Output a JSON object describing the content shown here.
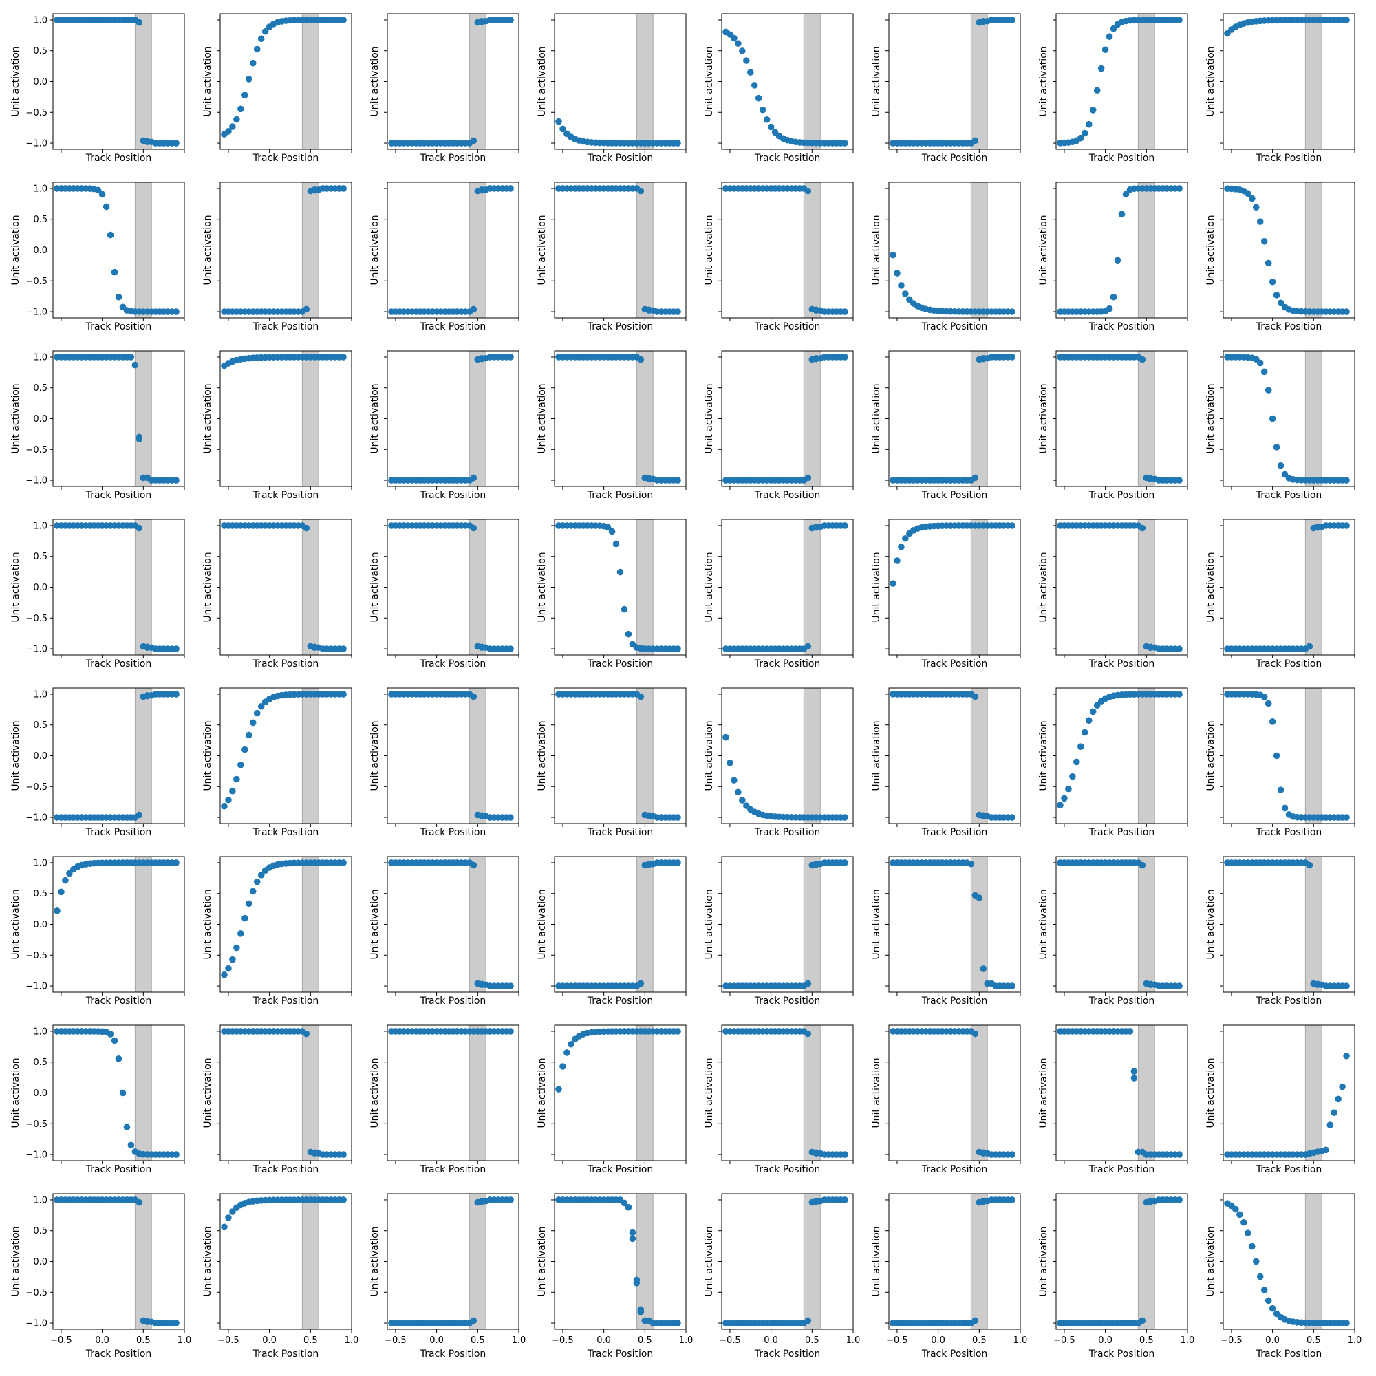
{
  "figure": {
    "background": "#ffffff"
  },
  "chart_data": {
    "type": "scatter",
    "grid": {
      "rows": 8,
      "cols": 8
    },
    "axis": {
      "xlabel": "Track Position",
      "ylabel": "Unit activation",
      "xlim": [
        -0.6,
        1.0
      ],
      "ylim": [
        -1.1,
        1.1
      ],
      "xticks": [
        -0.5,
        0.0,
        0.5,
        1.0
      ],
      "xtick_labels": [
        "−0.5",
        "0.0",
        "0.5",
        "1.0"
      ],
      "yticks": [
        -1.0,
        -0.5,
        0.0,
        0.5,
        1.0
      ],
      "ytick_labels": [
        "−1.0",
        "−0.5",
        "0.0",
        "0.5",
        "1.0"
      ],
      "x_ticklabels_shown_on": "bottom-row",
      "y_ticklabels_shown_on": "left-column",
      "grid": false,
      "legend": "none"
    },
    "shaded_region": {
      "x": [
        0.4,
        0.6
      ],
      "color": "#cccccc",
      "edge_color": "#a8a8a8"
    },
    "marker_color": "#1f77b4",
    "x": [
      -0.55,
      -0.5,
      -0.45,
      -0.4,
      -0.35,
      -0.3,
      -0.25,
      -0.2,
      -0.15,
      -0.1,
      -0.05,
      0.0,
      0.05,
      0.1,
      0.15,
      0.2,
      0.25,
      0.3,
      0.35,
      0.4,
      0.45,
      0.5,
      0.55,
      0.6,
      0.65,
      0.7,
      0.75,
      0.8,
      0.85,
      0.9
    ],
    "panels": [
      {
        "row": 1,
        "col": 1,
        "kind": "step",
        "dir": "down",
        "end": 0.45
      },
      {
        "row": 1,
        "col": 2,
        "kind": "sig",
        "y0": -0.92,
        "y1": 1.0,
        "center": -0.25,
        "width": 0.09
      },
      {
        "row": 1,
        "col": 3,
        "kind": "step",
        "dir": "up",
        "end": 0.45
      },
      {
        "row": 1,
        "col": 4,
        "kind": "exp",
        "y0": -0.65,
        "y1": -1.0,
        "tau": 0.12
      },
      {
        "row": 1,
        "col": 5,
        "kind": "sig",
        "y0": 0.88,
        "y1": -1.0,
        "center": -0.2,
        "width": 0.11
      },
      {
        "row": 1,
        "col": 6,
        "kind": "step",
        "dir": "up",
        "end": 0.45
      },
      {
        "row": 1,
        "col": 7,
        "kind": "sig",
        "y0": -1.0,
        "y1": 1.0,
        "center": -0.08,
        "width": 0.07
      },
      {
        "row": 1,
        "col": 8,
        "kind": "exp",
        "y0": 0.78,
        "y1": 1.0,
        "tau": 0.15
      },
      {
        "row": 2,
        "col": 1,
        "kind": "sig",
        "y0": 1.0,
        "y1": -1.0,
        "center": 0.12,
        "width": 0.04
      },
      {
        "row": 2,
        "col": 2,
        "kind": "step",
        "dir": "up",
        "end": 0.45
      },
      {
        "row": 2,
        "col": 3,
        "kind": "step",
        "dir": "up",
        "end": 0.45
      },
      {
        "row": 2,
        "col": 4,
        "kind": "step",
        "dir": "down",
        "end": 0.45
      },
      {
        "row": 2,
        "col": 5,
        "kind": "step",
        "dir": "down",
        "end": 0.45
      },
      {
        "row": 2,
        "col": 6,
        "kind": "exp",
        "y0": -0.08,
        "y1": -1.0,
        "tau": 0.13
      },
      {
        "row": 2,
        "col": 7,
        "kind": "sig",
        "y0": -1.0,
        "y1": 1.0,
        "center": 0.16,
        "width": 0.03
      },
      {
        "row": 2,
        "col": 8,
        "kind": "sig",
        "y0": 1.0,
        "y1": -1.0,
        "center": -0.08,
        "width": 0.07
      },
      {
        "row": 3,
        "col": 1,
        "kind": "drop",
        "left": 1.0,
        "pts": [
          [
            0.4,
            0.87
          ],
          [
            0.45,
            -0.3
          ],
          [
            0.45,
            -0.33
          ]
        ],
        "right_start": 0.5
      },
      {
        "row": 3,
        "col": 2,
        "kind": "exp",
        "y0": 0.86,
        "y1": 1.0,
        "tau": 0.15
      },
      {
        "row": 3,
        "col": 3,
        "kind": "step",
        "dir": "up",
        "end": 0.45
      },
      {
        "row": 3,
        "col": 4,
        "kind": "step",
        "dir": "down",
        "end": 0.45
      },
      {
        "row": 3,
        "col": 5,
        "kind": "step",
        "dir": "up",
        "end": 0.45
      },
      {
        "row": 3,
        "col": 6,
        "kind": "step",
        "dir": "up",
        "end": 0.45
      },
      {
        "row": 3,
        "col": 7,
        "kind": "step",
        "dir": "down",
        "end": 0.45
      },
      {
        "row": 3,
        "col": 8,
        "kind": "sig",
        "y0": 1.0,
        "y1": -1.0,
        "center": 0.0,
        "width": 0.05
      },
      {
        "row": 4,
        "col": 1,
        "kind": "step",
        "dir": "down",
        "end": 0.45
      },
      {
        "row": 4,
        "col": 2,
        "kind": "step",
        "dir": "down",
        "end": 0.45
      },
      {
        "row": 4,
        "col": 3,
        "kind": "step",
        "dir": "down",
        "end": 0.45
      },
      {
        "row": 4,
        "col": 4,
        "kind": "sig",
        "y0": 1.0,
        "y1": -1.0,
        "center": 0.22,
        "width": 0.04
      },
      {
        "row": 4,
        "col": 5,
        "kind": "step",
        "dir": "up",
        "end": 0.45
      },
      {
        "row": 4,
        "col": 6,
        "kind": "exp",
        "y0": 0.06,
        "y1": 1.0,
        "tau": 0.1
      },
      {
        "row": 4,
        "col": 7,
        "kind": "step",
        "dir": "down",
        "end": 0.45
      },
      {
        "row": 4,
        "col": 8,
        "kind": "step",
        "dir": "up",
        "end": 0.45
      },
      {
        "row": 5,
        "col": 1,
        "kind": "step",
        "dir": "up",
        "end": 0.45
      },
      {
        "row": 5,
        "col": 2,
        "kind": "sig",
        "y0": -1.0,
        "y1": 1.0,
        "center": -0.32,
        "width": 0.1
      },
      {
        "row": 5,
        "col": 3,
        "kind": "step",
        "dir": "down",
        "end": 0.45
      },
      {
        "row": 5,
        "col": 4,
        "kind": "step",
        "dir": "down",
        "end": 0.45
      },
      {
        "row": 5,
        "col": 5,
        "kind": "exp",
        "y0": 0.3,
        "y1": -1.0,
        "tau": 0.13
      },
      {
        "row": 5,
        "col": 6,
        "kind": "step",
        "dir": "down",
        "end": 0.45
      },
      {
        "row": 5,
        "col": 7,
        "kind": "sig",
        "y0": -1.0,
        "y1": 1.0,
        "center": -0.33,
        "width": 0.1
      },
      {
        "row": 5,
        "col": 8,
        "kind": "sig",
        "y0": 1.0,
        "y1": -1.0,
        "center": 0.05,
        "width": 0.04
      },
      {
        "row": 6,
        "col": 1,
        "kind": "exp",
        "y0": 0.22,
        "y1": 1.0,
        "tau": 0.1
      },
      {
        "row": 6,
        "col": 2,
        "kind": "sig",
        "y0": -1.0,
        "y1": 1.0,
        "center": -0.32,
        "width": 0.1
      },
      {
        "row": 6,
        "col": 3,
        "kind": "step",
        "dir": "down",
        "end": 0.45
      },
      {
        "row": 6,
        "col": 4,
        "kind": "step",
        "dir": "up",
        "end": 0.45
      },
      {
        "row": 6,
        "col": 5,
        "kind": "step",
        "dir": "up",
        "end": 0.45
      },
      {
        "row": 6,
        "col": 6,
        "kind": "drop",
        "left": 1.0,
        "pts": [
          [
            0.4,
            0.98
          ],
          [
            0.45,
            0.47
          ],
          [
            0.5,
            0.43
          ],
          [
            0.55,
            -0.72
          ]
        ],
        "right_start": 0.6
      },
      {
        "row": 6,
        "col": 7,
        "kind": "step",
        "dir": "down",
        "end": 0.45
      },
      {
        "row": 6,
        "col": 8,
        "kind": "step",
        "dir": "down",
        "end": 0.45
      },
      {
        "row": 7,
        "col": 1,
        "kind": "sig",
        "y0": 1.0,
        "y1": -1.0,
        "center": 0.25,
        "width": 0.04
      },
      {
        "row": 7,
        "col": 2,
        "kind": "step",
        "dir": "down",
        "end": 0.45
      },
      {
        "row": 7,
        "col": 3,
        "kind": "flat",
        "value": 1.0
      },
      {
        "row": 7,
        "col": 4,
        "kind": "exp",
        "y0": 0.06,
        "y1": 1.0,
        "tau": 0.1
      },
      {
        "row": 7,
        "col": 5,
        "kind": "step",
        "dir": "down",
        "end": 0.45
      },
      {
        "row": 7,
        "col": 6,
        "kind": "step",
        "dir": "down",
        "end": 0.45
      },
      {
        "row": 7,
        "col": 7,
        "kind": "drop",
        "left": 1.0,
        "pts": [
          [
            0.35,
            0.35
          ],
          [
            0.35,
            0.24
          ]
        ],
        "right_start": 0.4
      },
      {
        "row": 7,
        "col": 8,
        "kind": "rise",
        "y0": -1.0,
        "start": 0.4,
        "pts": [
          [
            0.7,
            -0.52
          ],
          [
            0.75,
            -0.32
          ],
          [
            0.8,
            -0.1
          ],
          [
            0.85,
            0.1
          ],
          [
            0.9,
            0.6
          ]
        ]
      },
      {
        "row": 8,
        "col": 1,
        "kind": "step",
        "dir": "down",
        "end": 0.45
      },
      {
        "row": 8,
        "col": 2,
        "kind": "exp",
        "y0": 0.56,
        "y1": 1.0,
        "tau": 0.12
      },
      {
        "row": 8,
        "col": 3,
        "kind": "step",
        "dir": "up",
        "end": 0.45
      },
      {
        "row": 8,
        "col": 4,
        "kind": "drop",
        "left": 1.0,
        "pts": [
          [
            0.25,
            0.95
          ],
          [
            0.3,
            0.88
          ],
          [
            0.35,
            0.47
          ],
          [
            0.35,
            0.37
          ],
          [
            0.4,
            -0.3
          ],
          [
            0.4,
            -0.35
          ],
          [
            0.45,
            -0.78
          ],
          [
            0.45,
            -0.82
          ]
        ],
        "right_start": 0.5
      },
      {
        "row": 8,
        "col": 5,
        "kind": "step",
        "dir": "up",
        "end": 0.45
      },
      {
        "row": 8,
        "col": 6,
        "kind": "step",
        "dir": "up",
        "end": 0.45
      },
      {
        "row": 8,
        "col": 7,
        "kind": "step",
        "dir": "up",
        "end": 0.45
      },
      {
        "row": 8,
        "col": 8,
        "kind": "sig",
        "y0": 1.0,
        "y1": -1.0,
        "center": -0.2,
        "width": 0.1
      }
    ]
  }
}
